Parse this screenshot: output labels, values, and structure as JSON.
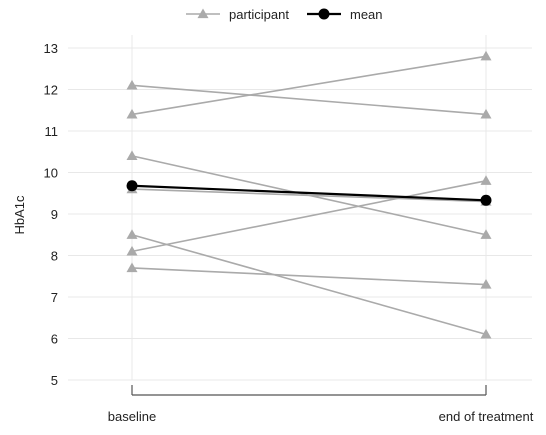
{
  "chart_data": {
    "type": "line",
    "title": "",
    "xlabel": "",
    "ylabel": "HbA1c",
    "categories": [
      "baseline",
      "end of treatment"
    ],
    "ylim": [
      5,
      13
    ],
    "yticks": [
      5,
      6,
      7,
      8,
      9,
      10,
      11,
      12,
      13
    ],
    "grid": true,
    "legend": {
      "placement": "top-center",
      "entries": [
        {
          "label": "participant",
          "color": "#aaaaaa",
          "marker": "triangle"
        },
        {
          "label": "mean",
          "color": "#000000",
          "marker": "circle"
        }
      ]
    },
    "participants": [
      {
        "values": [
          12.1,
          11.4
        ]
      },
      {
        "values": [
          11.4,
          12.8
        ]
      },
      {
        "values": [
          10.4,
          8.5
        ]
      },
      {
        "values": [
          9.6,
          9.3
        ]
      },
      {
        "values": [
          8.5,
          6.1
        ]
      },
      {
        "values": [
          8.1,
          9.8
        ]
      },
      {
        "values": [
          7.7,
          7.3
        ]
      }
    ],
    "mean": {
      "values": [
        9.68,
        9.33
      ]
    },
    "colors": {
      "participant": "#aaaaaa",
      "mean": "#000000",
      "grid": "#e8e8e8",
      "axis": "#555555"
    }
  }
}
